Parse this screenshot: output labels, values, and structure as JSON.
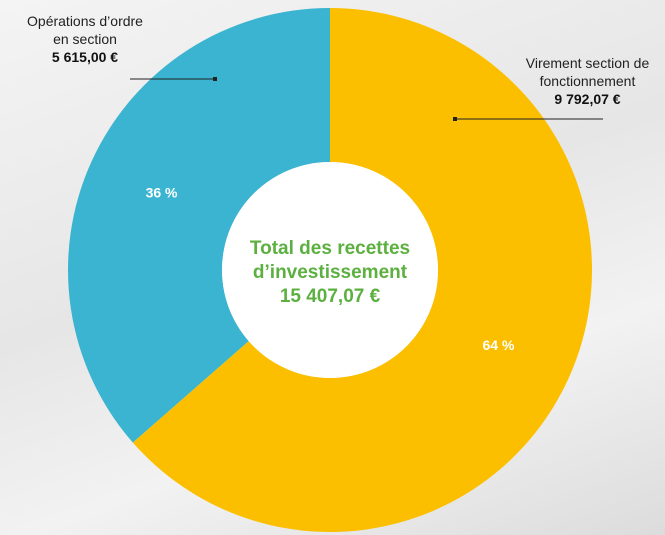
{
  "chart_data": {
    "type": "donut",
    "center_title": "Total des recettes d’investissement",
    "center_value": "15 407,07 €",
    "categories": [
      "Virement section de fonctionnement",
      "Opérations d’ordre en section"
    ],
    "values": [
      9792.07,
      5615.0
    ],
    "value_labels": [
      "9 792,07 €",
      "5 615,00 €"
    ],
    "percents": [
      64,
      36
    ],
    "percent_labels": [
      "64 %",
      "36 %"
    ],
    "colors": [
      "#fbbf00",
      "#3ab4d0"
    ]
  }
}
